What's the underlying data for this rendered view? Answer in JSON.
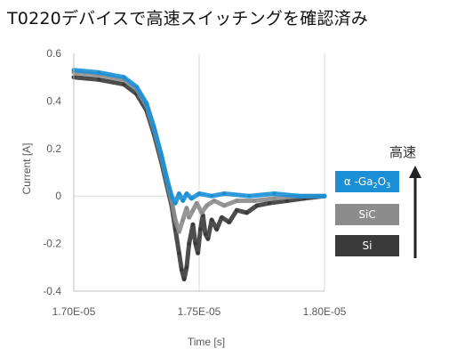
{
  "page": {
    "title": "T0220デバイスで高速スイッチングを確認済み"
  },
  "chart_data": {
    "type": "line",
    "title": "",
    "xlabel": "Time [s]",
    "ylabel": "Current [A]",
    "xlim": [
      1.7e-05,
      1.8e-05
    ],
    "ylim": [
      -0.4,
      0.6
    ],
    "x_ticks": [
      1.7e-05,
      1.75e-05,
      1.8e-05
    ],
    "x_tick_labels": [
      "1.70E-05",
      "1.75E-05",
      "1.80E-05"
    ],
    "y_ticks": [
      0.6,
      0.4,
      0.2,
      0,
      -0.2,
      -0.4
    ],
    "y_tick_labels": [
      "0.6",
      "0.4",
      "0.2",
      "0",
      "-0.2",
      "-0.4"
    ],
    "grid": "vertical-only",
    "legend_position": "right",
    "speed_label": "高速",
    "series": [
      {
        "name": "Si",
        "name_parts": [
          "Si"
        ],
        "color": "#3a3a3a",
        "points": [
          [
            1.7e-05,
            0.5
          ],
          [
            1.71e-05,
            0.49
          ],
          [
            1.72e-05,
            0.47
          ],
          [
            1.725e-05,
            0.43
          ],
          [
            1.729e-05,
            0.36
          ],
          [
            1.732e-05,
            0.26
          ],
          [
            1.735e-05,
            0.14
          ],
          [
            1.737e-05,
            0.05
          ],
          [
            1.739e-05,
            -0.04
          ],
          [
            1.7405e-05,
            -0.14
          ],
          [
            1.742e-05,
            -0.24
          ],
          [
            1.743e-05,
            -0.31
          ],
          [
            1.744e-05,
            -0.35
          ],
          [
            1.745e-05,
            -0.3
          ],
          [
            1.746e-05,
            -0.2
          ],
          [
            1.7475e-05,
            -0.12
          ],
          [
            1.7485e-05,
            -0.2
          ],
          [
            1.7495e-05,
            -0.24
          ],
          [
            1.7505e-05,
            -0.14
          ],
          [
            1.7515e-05,
            -0.08
          ],
          [
            1.7525e-05,
            -0.16
          ],
          [
            1.7535e-05,
            -0.18
          ],
          [
            1.755e-05,
            -0.1
          ],
          [
            1.757e-05,
            -0.14
          ],
          [
            1.759e-05,
            -0.09
          ],
          [
            1.762e-05,
            -0.11
          ],
          [
            1.765e-05,
            -0.06
          ],
          [
            1.769e-05,
            -0.07
          ],
          [
            1.773e-05,
            -0.04
          ],
          [
            1.778e-05,
            -0.03
          ],
          [
            1.785e-05,
            -0.02
          ],
          [
            1.792e-05,
            -0.01
          ],
          [
            1.8e-05,
            0.0
          ]
        ]
      },
      {
        "name": "SiC",
        "name_parts": [
          "SiC"
        ],
        "color": "#8c8c8c",
        "points": [
          [
            1.7e-05,
            0.52
          ],
          [
            1.71e-05,
            0.51
          ],
          [
            1.72e-05,
            0.49
          ],
          [
            1.725e-05,
            0.45
          ],
          [
            1.729e-05,
            0.38
          ],
          [
            1.732e-05,
            0.28
          ],
          [
            1.735e-05,
            0.16
          ],
          [
            1.737e-05,
            0.07
          ],
          [
            1.739e-05,
            -0.02
          ],
          [
            1.7405e-05,
            -0.1
          ],
          [
            1.742e-05,
            -0.15
          ],
          [
            1.7435e-05,
            -0.1
          ],
          [
            1.745e-05,
            -0.05
          ],
          [
            1.746e-05,
            -0.09
          ],
          [
            1.7475e-05,
            -0.06
          ],
          [
            1.749e-05,
            -0.03
          ],
          [
            1.751e-05,
            -0.07
          ],
          [
            1.753e-05,
            -0.04
          ],
          [
            1.756e-05,
            -0.02
          ],
          [
            1.76e-05,
            -0.04
          ],
          [
            1.765e-05,
            -0.02
          ],
          [
            1.772e-05,
            -0.02
          ],
          [
            1.78e-05,
            -0.01
          ],
          [
            1.79e-05,
            0.0
          ],
          [
            1.8e-05,
            0.0
          ]
        ]
      },
      {
        "name": "α-Ga2O3",
        "name_parts": [
          "α -Ga",
          "2",
          "O",
          "3"
        ],
        "color": "#1a8fd6",
        "points": [
          [
            1.7e-05,
            0.53
          ],
          [
            1.71e-05,
            0.52
          ],
          [
            1.72e-05,
            0.5
          ],
          [
            1.725e-05,
            0.46
          ],
          [
            1.729e-05,
            0.39
          ],
          [
            1.732e-05,
            0.29
          ],
          [
            1.735e-05,
            0.17
          ],
          [
            1.737e-05,
            0.08
          ],
          [
            1.739e-05,
            0.0
          ],
          [
            1.7405e-05,
            -0.03
          ],
          [
            1.742e-05,
            0.01
          ],
          [
            1.7435e-05,
            -0.02
          ],
          [
            1.745e-05,
            0.01
          ],
          [
            1.747e-05,
            -0.01
          ],
          [
            1.75e-05,
            0.01
          ],
          [
            1.755e-05,
            0.0
          ],
          [
            1.76e-05,
            0.01
          ],
          [
            1.77e-05,
            0.0
          ],
          [
            1.78e-05,
            0.01
          ],
          [
            1.79e-05,
            0.0
          ],
          [
            1.8e-05,
            0.0
          ]
        ]
      }
    ]
  }
}
